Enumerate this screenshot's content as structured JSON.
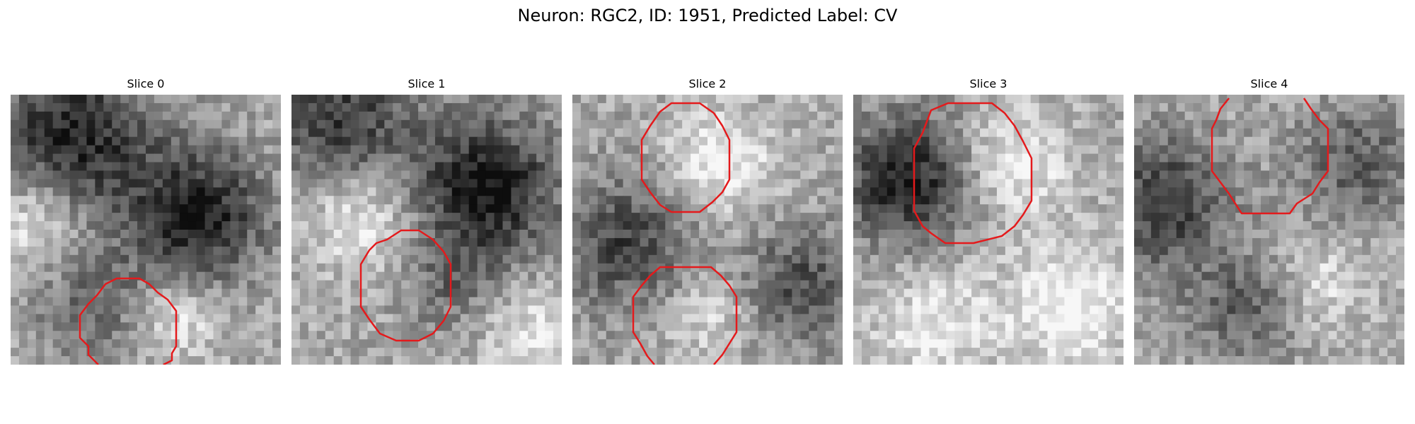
{
  "figure": {
    "title": "Neuron: RGC2, ID: 1951, Predicted Label: CV",
    "slices": [
      {
        "title": "Slice 0"
      },
      {
        "title": "Slice 1"
      },
      {
        "title": "Slice 2"
      },
      {
        "title": "Slice 3"
      },
      {
        "title": "Slice 4"
      }
    ],
    "contour_color": "#e41a1c",
    "colormap": "gray"
  }
}
